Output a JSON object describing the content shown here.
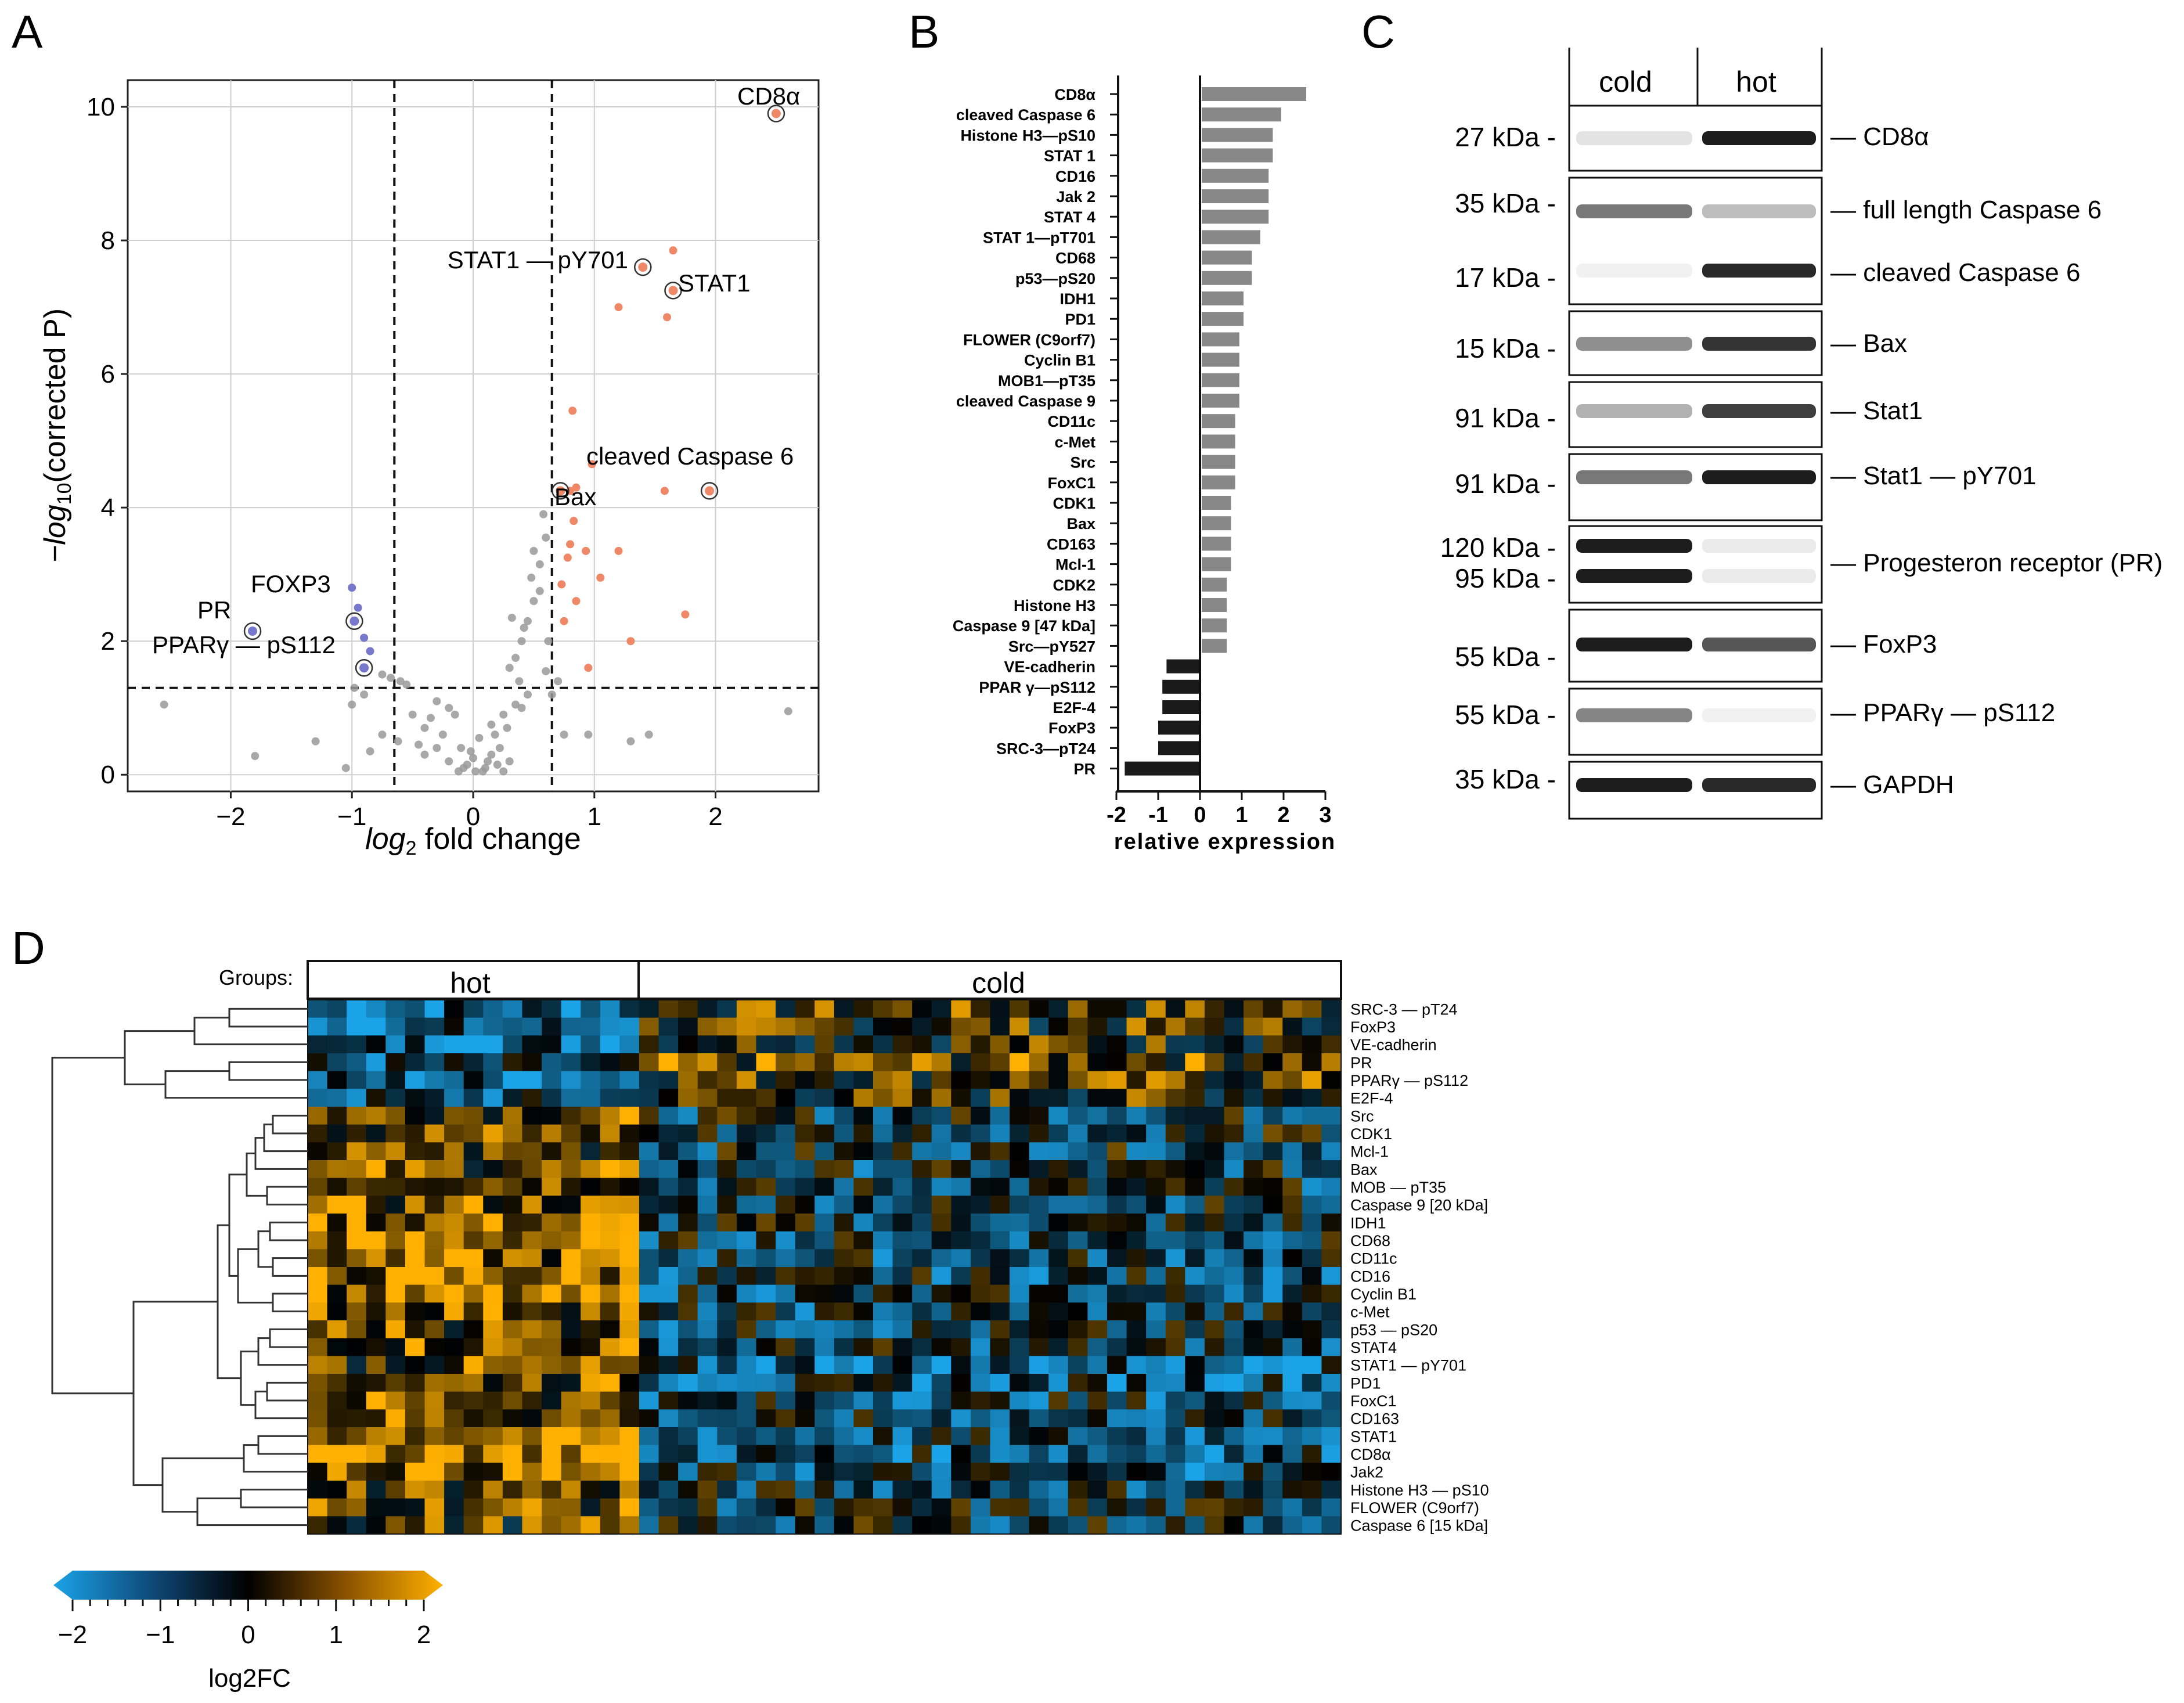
{
  "panels": {
    "a": "A",
    "b": "B",
    "c": "C",
    "d": "D"
  },
  "volcano": {
    "xlabel_log": "log",
    "xlabel_sub": "2",
    "xlabel_rest": " fold change",
    "ylabel_pre": "−log",
    "ylabel_sub": "10",
    "ylabel_rest": "(corrected P)",
    "xticks": [
      "−2",
      "−1",
      "0",
      "1",
      "2"
    ],
    "yticks": [
      "0",
      "2",
      "4",
      "6",
      "8",
      "10"
    ],
    "labels": {
      "cd8a": "CD8α",
      "stat1_py": "STAT1 — pY701",
      "stat1": "STAT1",
      "caspase": "cleaved Caspase 6",
      "bax": "Bax",
      "foxp3": "FOXP3",
      "pr": "PR",
      "pparg": "PPARγ — pS112"
    },
    "colors": {
      "up": "#ee8866",
      "down": "#7777cc",
      "ns": "#999999"
    }
  },
  "chart_data": [
    {
      "type": "scatter",
      "title": "",
      "xlabel": "log2 fold change",
      "ylabel": "-log10(corrected P)",
      "xlim": [
        -2.85,
        2.85
      ],
      "ylim": [
        -0.25,
        10.4
      ],
      "thresholds": {
        "x": [
          -0.65,
          0.65
        ],
        "y": 1.3
      },
      "highlighted": [
        {
          "label": "CD8α",
          "x": 2.5,
          "y": 9.9,
          "group": "up"
        },
        {
          "label": "STAT1 — pY701",
          "x": 1.4,
          "y": 7.6,
          "group": "up"
        },
        {
          "label": "STAT1",
          "x": 1.65,
          "y": 7.25,
          "group": "up"
        },
        {
          "label": "cleaved Caspase 6",
          "x": 1.95,
          "y": 4.25,
          "group": "up"
        },
        {
          "label": "Bax",
          "x": 0.72,
          "y": 4.25,
          "group": "up"
        },
        {
          "label": "FOXP3",
          "x": -0.98,
          "y": 2.3,
          "group": "down"
        },
        {
          "label": "PR",
          "x": -1.82,
          "y": 2.15,
          "group": "down"
        },
        {
          "label": "PPARγ — pS112",
          "x": -0.9,
          "y": 1.6,
          "group": "down"
        }
      ],
      "up": [
        [
          1.65,
          7.85
        ],
        [
          1.2,
          7.0
        ],
        [
          1.6,
          6.85
        ],
        [
          0.82,
          5.45
        ],
        [
          0.98,
          4.65
        ],
        [
          0.85,
          4.3
        ],
        [
          0.8,
          4.25
        ],
        [
          1.58,
          4.25
        ],
        [
          0.83,
          3.8
        ],
        [
          0.8,
          3.45
        ],
        [
          0.93,
          3.35
        ],
        [
          1.2,
          3.35
        ],
        [
          0.78,
          3.25
        ],
        [
          0.73,
          2.85
        ],
        [
          0.85,
          2.6
        ],
        [
          1.05,
          2.95
        ],
        [
          0.75,
          2.3
        ],
        [
          1.75,
          2.4
        ],
        [
          1.3,
          2.0
        ],
        [
          0.95,
          1.6
        ]
      ],
      "down": [
        [
          -1.0,
          2.8
        ],
        [
          -0.95,
          2.5
        ],
        [
          -0.85,
          1.85
        ],
        [
          -0.9,
          2.05
        ]
      ],
      "ns": [
        [
          -2.55,
          1.05
        ],
        [
          -1.8,
          0.28
        ],
        [
          -1.3,
          0.5
        ],
        [
          -1.05,
          0.1
        ],
        [
          -1.0,
          1.05
        ],
        [
          -0.98,
          1.3
        ],
        [
          -0.9,
          1.2
        ],
        [
          -0.75,
          1.5
        ],
        [
          -0.68,
          1.45
        ],
        [
          -0.6,
          1.4
        ],
        [
          -0.55,
          1.35
        ],
        [
          -0.75,
          0.6
        ],
        [
          -0.62,
          0.5
        ],
        [
          -0.5,
          0.9
        ],
        [
          -0.45,
          0.45
        ],
        [
          -0.4,
          0.3
        ],
        [
          -0.35,
          0.85
        ],
        [
          -0.3,
          0.4
        ],
        [
          -0.25,
          0.6
        ],
        [
          -0.2,
          0.2
        ],
        [
          -0.15,
          0.9
        ],
        [
          -0.1,
          0.4
        ],
        [
          -0.05,
          0.15
        ],
        [
          0.0,
          0.25
        ],
        [
          0.05,
          0.55
        ],
        [
          0.1,
          0.1
        ],
        [
          0.15,
          0.3
        ],
        [
          0.2,
          0.15
        ],
        [
          0.25,
          0.05
        ],
        [
          0.3,
          0.2
        ],
        [
          -0.02,
          0.35
        ],
        [
          0.02,
          0.05
        ],
        [
          0.08,
          0.05
        ],
        [
          -0.08,
          0.1
        ],
        [
          -0.12,
          0.05
        ],
        [
          0.12,
          0.2
        ],
        [
          0.18,
          0.6
        ],
        [
          0.22,
          0.4
        ],
        [
          0.28,
          0.7
        ],
        [
          0.35,
          1.05
        ],
        [
          0.4,
          1.0
        ],
        [
          0.45,
          1.2
        ],
        [
          0.3,
          1.6
        ],
        [
          0.35,
          1.75
        ],
        [
          0.4,
          2.0
        ],
        [
          0.45,
          2.3
        ],
        [
          0.5,
          2.6
        ],
        [
          0.48,
          2.95
        ],
        [
          0.55,
          3.15
        ],
        [
          0.6,
          3.55
        ],
        [
          0.58,
          3.9
        ],
        [
          0.5,
          3.35
        ],
        [
          0.42,
          2.2
        ],
        [
          0.55,
          2.75
        ],
        [
          0.62,
          2.0
        ],
        [
          0.6,
          1.55
        ],
        [
          0.32,
          2.35
        ],
        [
          0.38,
          1.4
        ],
        [
          0.75,
          0.6
        ],
        [
          0.95,
          0.6
        ],
        [
          1.3,
          0.5
        ],
        [
          1.45,
          0.6
        ],
        [
          2.6,
          0.95
        ],
        [
          -0.85,
          0.35
        ],
        [
          0.7,
          1.4
        ],
        [
          0.65,
          1.2
        ],
        [
          -0.3,
          1.1
        ],
        [
          -0.2,
          1.0
        ],
        [
          0.25,
          0.9
        ],
        [
          -0.4,
          0.7
        ],
        [
          0.15,
          0.75
        ]
      ]
    },
    {
      "type": "bar",
      "orientation": "horizontal",
      "title": "",
      "xlabel": "relative expression",
      "ylabel": "",
      "xlim": [
        -2,
        3
      ],
      "xticks": [
        "-2",
        "-1",
        "0",
        "1",
        "2",
        "3"
      ],
      "categories": [
        "CD8α",
        "cleaved Caspase 6",
        "Histone H3—pS10",
        "STAT 1",
        "CD16",
        "Jak 2",
        "STAT 4",
        "STAT 1—pT701",
        "CD68",
        "p53—pS20",
        "IDH1",
        "PD1",
        "FLOWER (C9orf7)",
        "Cyclin B1",
        "MOB1—pT35",
        "cleaved Caspase 9",
        "CD11c",
        "c-Met",
        "Src",
        "FoxC1",
        "CDK1",
        "Bax",
        "CD163",
        "Mcl-1",
        "CDK2",
        "Histone H3",
        "Caspase 9 [47 kDa]",
        "Src—pY527",
        "VE-cadherin",
        "PPAR γ—pS112",
        "E2F-4",
        "FoxP3",
        "SRC-3—pT24",
        "PR"
      ],
      "values": [
        2.5,
        1.9,
        1.7,
        1.7,
        1.6,
        1.6,
        1.6,
        1.4,
        1.2,
        1.2,
        1.0,
        1.0,
        0.9,
        0.9,
        0.9,
        0.9,
        0.8,
        0.8,
        0.8,
        0.8,
        0.7,
        0.7,
        0.7,
        0.7,
        0.6,
        0.6,
        0.6,
        0.6,
        -0.8,
        -0.9,
        -0.9,
        -1.0,
        -1.0,
        -1.8
      ]
    },
    {
      "type": "table",
      "title": "Groups: hot / cold",
      "groups": {
        "label": "Groups:",
        "hot": "hot",
        "cold": "cold",
        "hot_n": 17,
        "cold_n": 36
      },
      "rows": [
        "SRC-3 — pT24",
        "FoxP3",
        "VE-cadherin",
        "PR",
        "PPARγ — pS112",
        "E2F-4",
        "Src",
        "CDK1",
        "Mcl-1",
        "Bax",
        "MOB — pT35",
        "Caspase 9 [20 kDa]",
        "IDH1",
        "CD68",
        "CD11c",
        "CD16",
        "Cyclin B1",
        "c-Met",
        "p53 — pS20",
        "STAT4",
        "STAT1 — pY701",
        "PD1",
        "FoxC1",
        "CD163",
        "STAT1",
        "CD8α",
        "Jak2",
        "Histone H3 — pS10",
        "FLOWER (C9orf7)",
        "Caspase 6 [15 kDa]"
      ],
      "hot_mean": [
        -1.0,
        -1.1,
        -1.0,
        -0.9,
        -1.1,
        -0.9,
        1.0,
        0.8,
        0.6,
        0.8,
        1.1,
        0.9,
        1.2,
        1.3,
        1.1,
        1.2,
        1.1,
        1.1,
        0.9,
        1.0,
        0.7,
        0.9,
        0.9,
        0.9,
        1.4,
        1.7,
        1.3,
        0.8,
        0.9,
        0.6
      ],
      "cold_mean": [
        0.5,
        0.4,
        0.4,
        0.8,
        0.6,
        0.3,
        -0.4,
        -0.3,
        -0.4,
        -0.5,
        -0.5,
        -0.4,
        -0.4,
        -0.5,
        -0.6,
        -0.6,
        -0.6,
        -0.6,
        -0.6,
        -0.5,
        -1.0,
        -0.8,
        -0.6,
        -0.7,
        -0.8,
        -0.8,
        -0.7,
        -0.5,
        -0.4,
        -0.4
      ],
      "colorbar": {
        "min": -2,
        "max": 2,
        "ticks": [
          "−2",
          "−1",
          "0",
          "1",
          "2"
        ],
        "label": "log2FC"
      }
    }
  ],
  "blots": {
    "headers": {
      "cold": "cold",
      "hot": "hot"
    },
    "lanes": [
      {
        "kda": [
          "27 kDa -"
        ],
        "protein": "— CD8α"
      },
      {
        "kda": [
          "35 kDa -",
          "17 kDa -"
        ],
        "protein": "— full length Caspase 6",
        "protein2": "— cleaved Caspase 6"
      },
      {
        "kda": [
          "15 kDa -"
        ],
        "protein": "— Bax"
      },
      {
        "kda": [
          "91 kDa -"
        ],
        "protein": "— Stat1"
      },
      {
        "kda": [
          "91 kDa -"
        ],
        "protein": "— Stat1 — pY701"
      },
      {
        "kda": [
          "120 kDa -",
          "95 kDa -"
        ],
        "protein": "— Progesteron receptor (PR)"
      },
      {
        "kda": [
          "55 kDa -"
        ],
        "protein": "— FoxP3"
      },
      {
        "kda": [
          "55 kDa -"
        ],
        "protein": "— PPARγ — pS112"
      },
      {
        "kda": [
          "35 kDa -"
        ],
        "protein": "— GAPDH"
      }
    ],
    "band_intensity": [
      {
        "cold": [
          0.08
        ],
        "hot": [
          0.95
        ]
      },
      {
        "cold": [
          0.55,
          0.02
        ],
        "hot": [
          0.25,
          0.9
        ]
      },
      {
        "cold": [
          0.45
        ],
        "hot": [
          0.85
        ]
      },
      {
        "cold": [
          0.3
        ],
        "hot": [
          0.8
        ]
      },
      {
        "cold": [
          0.55
        ],
        "hot": [
          0.95
        ]
      },
      {
        "cold": [
          0.95,
          0.95
        ],
        "hot": [
          0.05,
          0.05
        ]
      },
      {
        "cold": [
          0.95
        ],
        "hot": [
          0.7
        ]
      },
      {
        "cold": [
          0.5
        ],
        "hot": [
          0.02
        ]
      },
      {
        "cold": [
          0.95
        ],
        "hot": [
          0.9
        ]
      }
    ]
  }
}
